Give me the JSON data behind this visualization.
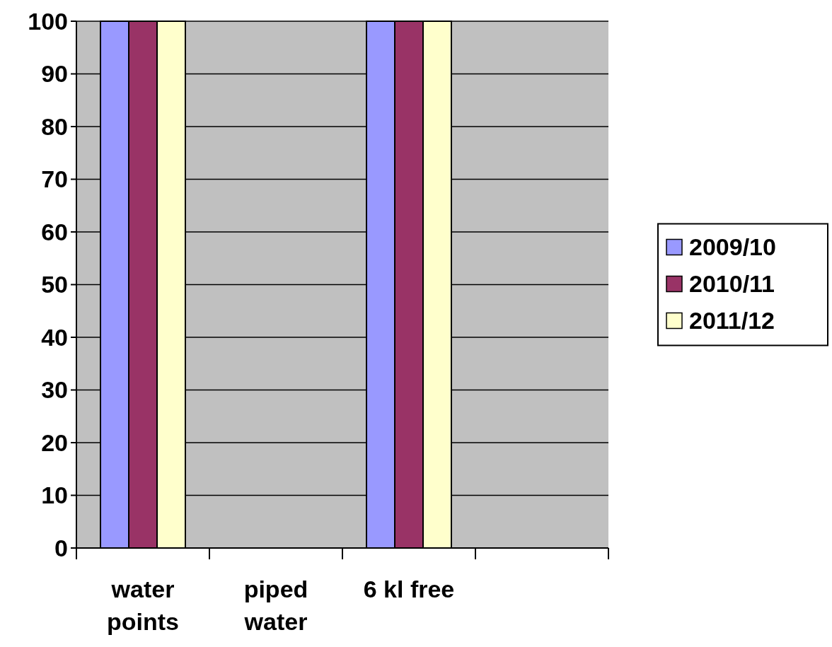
{
  "chart_data": {
    "type": "bar",
    "categories": [
      "water points",
      "piped water",
      "6 kl free",
      null
    ],
    "series": [
      {
        "name": "2009/10",
        "color": "#9999ff",
        "values": [
          100,
          0,
          100,
          null
        ]
      },
      {
        "name": "2010/11",
        "color": "#993366",
        "values": [
          100,
          0,
          100,
          null
        ]
      },
      {
        "name": "2011/12",
        "color": "#ffffcc",
        "values": [
          100,
          0,
          100,
          null
        ]
      }
    ],
    "ylim": [
      0,
      100
    ],
    "yticks": [
      0,
      10,
      20,
      30,
      40,
      50,
      60,
      70,
      80,
      90,
      100
    ],
    "grid": "y",
    "legend": "right"
  }
}
